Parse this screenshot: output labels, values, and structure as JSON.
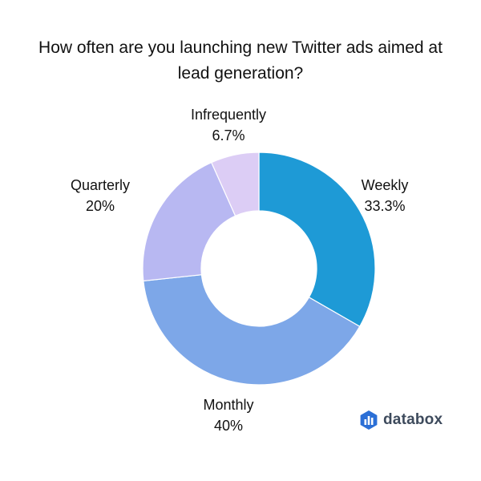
{
  "brand": {
    "name": "databox",
    "icon": "databox-logo-icon"
  },
  "chart_data": {
    "type": "pie",
    "variant": "donut",
    "title": "How often are you launching new Twitter ads aimed at lead generation?",
    "slices": [
      {
        "label": "Weekly",
        "value": 33.3,
        "display": "33.3%",
        "color": "#1e9ad6"
      },
      {
        "label": "Monthly",
        "value": 40,
        "display": "40%",
        "color": "#7da7e8"
      },
      {
        "label": "Quarterly",
        "value": 20,
        "display": "20%",
        "color": "#b8b8f2"
      },
      {
        "label": "Infrequently",
        "value": 6.7,
        "display": "6.7%",
        "color": "#dccdf5"
      }
    ],
    "legend": "none",
    "label_placement": "outside"
  }
}
